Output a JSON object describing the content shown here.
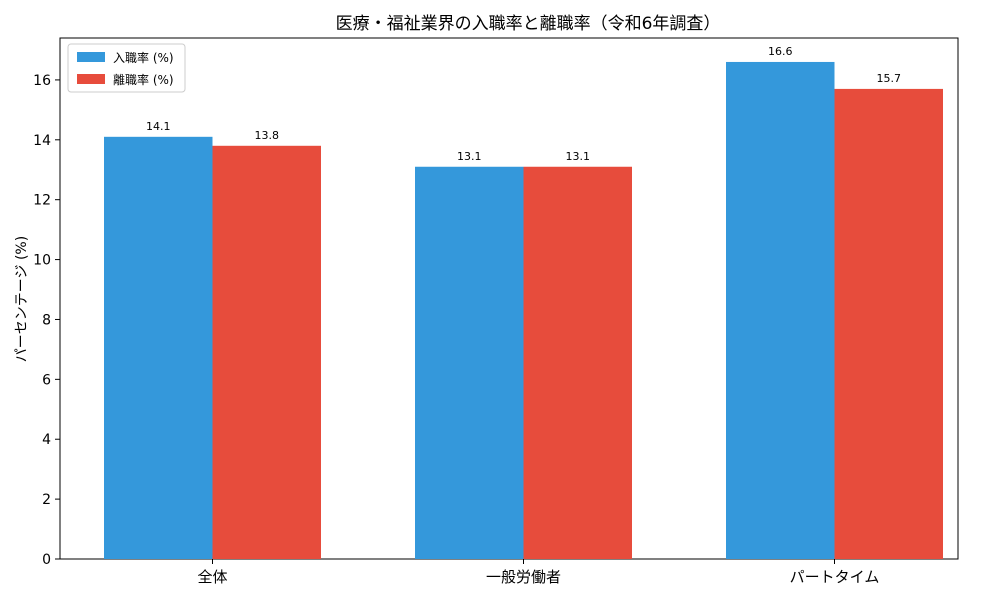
{
  "chart_data": {
    "type": "bar",
    "title": "医療・福祉業界の入職率と離職率（令和6年調査）",
    "xlabel": "",
    "ylabel": "パーセンテージ (%)",
    "categories": [
      "全体",
      "一般労働者",
      "パートタイム"
    ],
    "series": [
      {
        "name": "入職率 (%)",
        "values": [
          14.1,
          13.1,
          16.6
        ],
        "color": "#3498db"
      },
      {
        "name": "離職率 (%)",
        "values": [
          13.8,
          13.1,
          15.7
        ],
        "color": "#e74c3c"
      }
    ],
    "ylim": [
      0,
      17.4
    ],
    "yticks": [
      0,
      2,
      4,
      6,
      8,
      10,
      12,
      14,
      16
    ],
    "grid": false,
    "legend": "top-left",
    "data_labels": true
  }
}
